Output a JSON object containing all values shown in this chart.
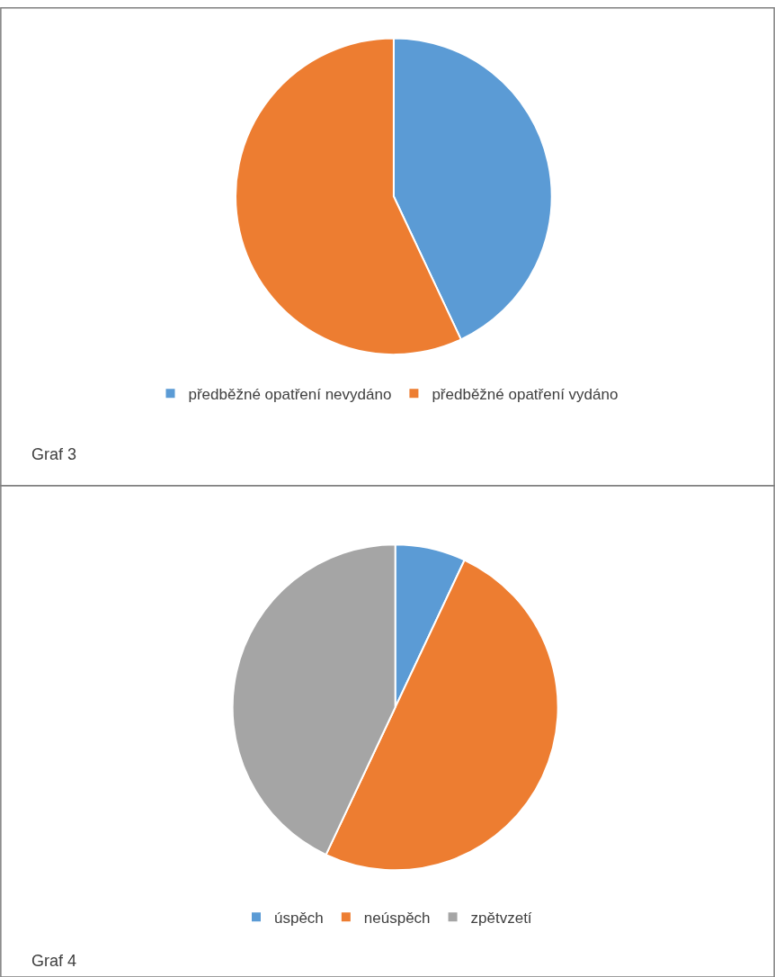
{
  "chart_data": [
    {
      "type": "pie",
      "categories": [
        "předběžné opatření nevydáno",
        "předběžné opatření vydáno"
      ],
      "values": [
        43,
        57
      ],
      "colors": [
        "#5b9bd5",
        "#ed7d31"
      ],
      "legend": "bottom",
      "annotations": [
        "Graf 3"
      ]
    },
    {
      "type": "pie",
      "categories": [
        "úspěch",
        "neúspěch",
        "zpětvzetí"
      ],
      "values": [
        7,
        50,
        43
      ],
      "colors": [
        "#5b9bd5",
        "#ed7d31",
        "#a5a5a5"
      ],
      "legend": "bottom",
      "annotations": [
        "Graf 4"
      ]
    }
  ]
}
